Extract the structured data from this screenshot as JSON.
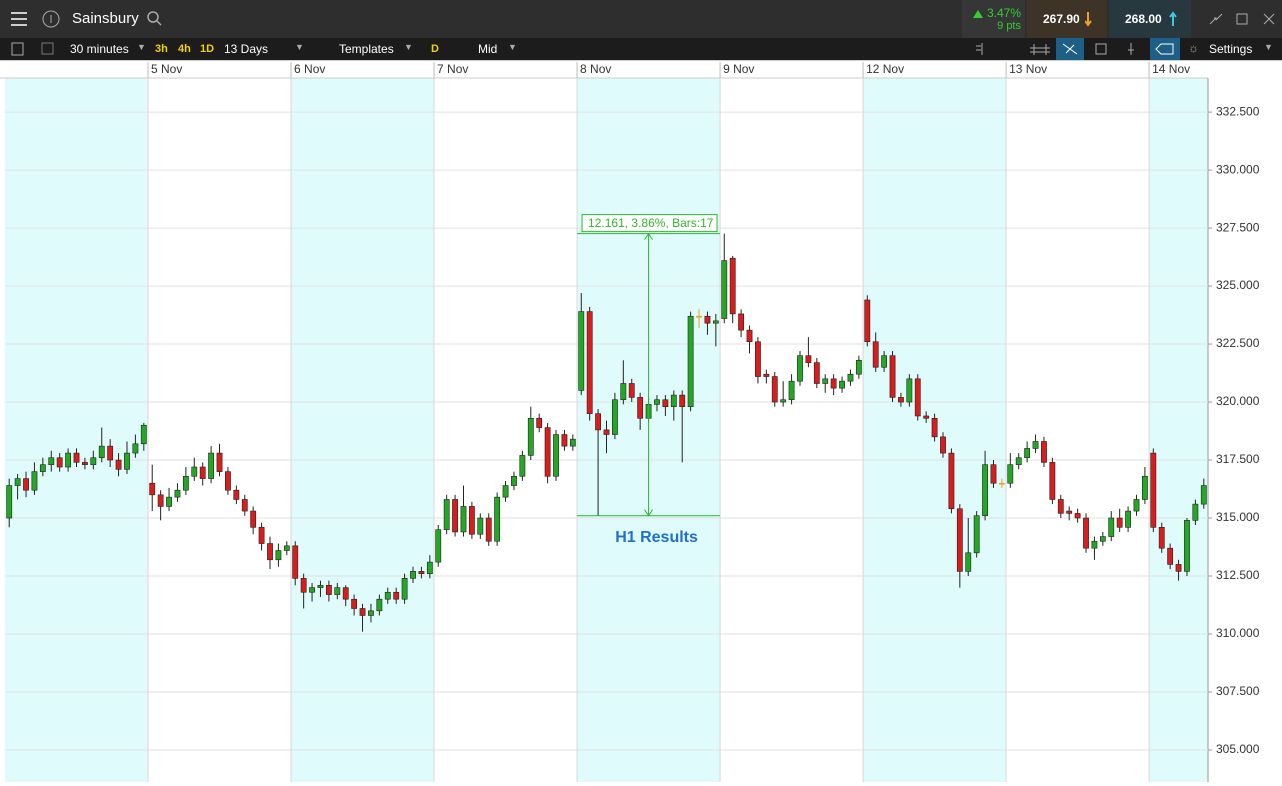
{
  "toolbar": {
    "instrument": "Sainsbury",
    "change_pct": "3.47%",
    "change_pts": "9 pts",
    "sell": "267.90",
    "buy": "268.00",
    "interval": "30 minutes",
    "quick_intervals": [
      "3h",
      "4h",
      "1D"
    ],
    "range": "13 Days",
    "templates": "Templates",
    "price_badge": "D",
    "price_type": "Mid",
    "settings": "Settings"
  },
  "chart_data": {
    "type": "candlestick",
    "ohlc": [
      [
        315.0,
        316.7,
        314.6,
        316.4
      ],
      [
        316.4,
        316.9,
        315.8,
        316.7
      ],
      [
        316.7,
        317.0,
        315.9,
        316.2
      ],
      [
        316.2,
        317.4,
        316.0,
        317.0
      ],
      [
        317.0,
        317.6,
        316.8,
        317.3
      ],
      [
        317.3,
        317.9,
        317.0,
        317.6
      ],
      [
        317.6,
        317.8,
        317.0,
        317.2
      ],
      [
        317.2,
        318.0,
        317.0,
        317.8
      ],
      [
        317.8,
        318.0,
        317.2,
        317.4
      ],
      [
        317.4,
        317.6,
        317.1,
        317.3
      ],
      [
        317.3,
        317.9,
        317.1,
        317.6
      ],
      [
        317.6,
        318.9,
        317.4,
        318.1
      ],
      [
        318.1,
        318.4,
        317.2,
        317.5
      ],
      [
        317.5,
        317.8,
        316.8,
        317.1
      ],
      [
        317.1,
        318.3,
        316.9,
        317.8
      ],
      [
        317.8,
        318.6,
        317.6,
        318.2
      ],
      [
        318.2,
        319.1,
        317.9,
        319.0
      ],
      [
        316.5,
        317.3,
        315.3,
        316.0
      ],
      [
        316.0,
        316.2,
        314.9,
        315.5
      ],
      [
        315.5,
        316.3,
        315.3,
        315.9
      ],
      [
        315.9,
        316.5,
        315.7,
        316.2
      ],
      [
        316.2,
        317.2,
        316.0,
        316.8
      ],
      [
        316.8,
        317.6,
        316.6,
        317.2
      ],
      [
        317.2,
        317.4,
        316.4,
        316.7
      ],
      [
        316.7,
        318.1,
        316.5,
        317.8
      ],
      [
        317.8,
        318.2,
        316.8,
        317.0
      ],
      [
        317.0,
        317.2,
        316.0,
        316.2
      ],
      [
        316.2,
        316.4,
        315.6,
        315.8
      ],
      [
        315.8,
        316.0,
        315.1,
        315.3
      ],
      [
        315.3,
        315.5,
        314.3,
        314.6
      ],
      [
        314.6,
        314.8,
        313.6,
        313.9
      ],
      [
        313.9,
        314.2,
        312.8,
        313.2
      ],
      [
        313.2,
        313.9,
        312.9,
        313.6
      ],
      [
        313.6,
        314.0,
        313.4,
        313.8
      ],
      [
        313.8,
        314.0,
        312.1,
        312.4
      ],
      [
        312.4,
        312.6,
        311.1,
        311.8
      ],
      [
        311.8,
        312.2,
        311.4,
        312.0
      ],
      [
        312.0,
        312.3,
        311.6,
        312.1
      ],
      [
        312.1,
        312.3,
        311.4,
        311.7
      ],
      [
        311.7,
        312.2,
        311.5,
        312.0
      ],
      [
        312.0,
        312.1,
        311.2,
        311.5
      ],
      [
        311.5,
        311.7,
        310.8,
        311.1
      ],
      [
        311.1,
        311.3,
        310.1,
        310.8
      ],
      [
        310.8,
        311.3,
        310.5,
        311.0
      ],
      [
        311.0,
        311.7,
        310.8,
        311.5
      ],
      [
        311.5,
        312.0,
        311.3,
        311.8
      ],
      [
        311.8,
        312.0,
        311.3,
        311.5
      ],
      [
        311.5,
        312.6,
        311.3,
        312.4
      ],
      [
        312.4,
        312.9,
        312.2,
        312.7
      ],
      [
        312.7,
        312.9,
        312.4,
        312.6
      ],
      [
        312.6,
        313.4,
        312.4,
        313.1
      ],
      [
        313.1,
        314.7,
        312.9,
        314.5
      ],
      [
        314.5,
        316.0,
        314.3,
        315.8
      ],
      [
        315.8,
        316.0,
        314.2,
        314.4
      ],
      [
        314.4,
        316.4,
        314.2,
        315.5
      ],
      [
        315.5,
        315.7,
        314.1,
        314.3
      ],
      [
        314.3,
        315.2,
        314.1,
        315.0
      ],
      [
        315.0,
        315.2,
        313.8,
        314.0
      ],
      [
        314.0,
        316.1,
        313.8,
        315.9
      ],
      [
        315.9,
        316.6,
        315.7,
        316.4
      ],
      [
        316.4,
        317.0,
        316.2,
        316.8
      ],
      [
        316.8,
        317.9,
        316.6,
        317.7
      ],
      [
        317.7,
        319.8,
        317.5,
        319.3
      ],
      [
        319.3,
        319.5,
        318.7,
        318.9
      ],
      [
        318.9,
        319.1,
        316.5,
        316.8
      ],
      [
        316.8,
        318.8,
        316.6,
        318.6
      ],
      [
        318.6,
        318.8,
        317.9,
        318.1
      ],
      [
        318.1,
        318.6,
        317.9,
        318.4
      ],
      [
        320.5,
        324.7,
        320.3,
        323.9
      ],
      [
        323.9,
        324.1,
        319.2,
        319.5
      ],
      [
        319.5,
        319.7,
        315.1,
        318.8
      ],
      [
        318.8,
        319.2,
        317.8,
        318.6
      ],
      [
        318.6,
        320.4,
        318.4,
        320.1
      ],
      [
        320.1,
        321.8,
        319.9,
        320.8
      ],
      [
        320.8,
        321.0,
        320.0,
        320.2
      ],
      [
        320.2,
        320.4,
        318.8,
        319.3
      ],
      [
        319.3,
        320.2,
        319.1,
        319.9
      ],
      [
        319.9,
        320.3,
        319.6,
        320.1
      ],
      [
        320.1,
        320.3,
        319.4,
        319.8
      ],
      [
        319.8,
        320.5,
        319.2,
        320.3
      ],
      [
        320.3,
        320.5,
        317.4,
        319.8
      ],
      [
        319.8,
        323.9,
        319.6,
        323.7
      ],
      [
        323.7,
        324.0,
        323.2,
        323.7
      ],
      [
        323.7,
        323.9,
        322.9,
        323.4
      ],
      [
        323.4,
        323.8,
        322.4,
        323.5
      ],
      [
        323.6,
        327.261,
        323.4,
        326.1
      ],
      [
        326.2,
        326.3,
        323.4,
        323.8
      ],
      [
        323.8,
        324.0,
        322.8,
        323.1
      ],
      [
        323.1,
        323.3,
        322.1,
        322.6
      ],
      [
        322.6,
        322.8,
        320.8,
        321.1
      ],
      [
        321.2,
        321.4,
        320.8,
        321.1
      ],
      [
        321.1,
        321.3,
        319.8,
        320.0
      ],
      [
        320.0,
        320.9,
        319.8,
        320.1
      ],
      [
        320.1,
        321.2,
        319.9,
        320.9
      ],
      [
        320.9,
        322.2,
        320.7,
        322.0
      ],
      [
        322.0,
        322.8,
        321.5,
        321.7
      ],
      [
        321.7,
        321.9,
        320.6,
        320.8
      ],
      [
        320.8,
        321.2,
        320.4,
        321.0
      ],
      [
        321.0,
        321.2,
        320.3,
        320.6
      ],
      [
        320.6,
        321.1,
        320.4,
        320.9
      ],
      [
        320.9,
        321.4,
        320.7,
        321.2
      ],
      [
        321.2,
        322.0,
        321.0,
        321.8
      ],
      [
        324.4,
        324.6,
        322.4,
        322.6
      ],
      [
        322.6,
        323.0,
        321.3,
        321.5
      ],
      [
        321.5,
        322.2,
        321.3,
        322.0
      ],
      [
        322.0,
        322.2,
        320.0,
        320.2
      ],
      [
        320.2,
        320.4,
        319.8,
        320.0
      ],
      [
        320.0,
        321.2,
        319.8,
        321.0
      ],
      [
        321.0,
        321.2,
        319.2,
        319.4
      ],
      [
        319.4,
        319.6,
        319.1,
        319.3
      ],
      [
        319.3,
        319.5,
        318.3,
        318.5
      ],
      [
        318.5,
        318.7,
        317.6,
        317.8
      ],
      [
        317.8,
        318.0,
        315.2,
        315.4
      ],
      [
        315.4,
        315.6,
        312.0,
        312.7
      ],
      [
        312.7,
        315.0,
        312.5,
        313.5
      ],
      [
        313.5,
        315.3,
        313.3,
        315.1
      ],
      [
        315.1,
        317.9,
        314.9,
        317.3
      ],
      [
        317.3,
        317.5,
        316.3,
        316.5
      ],
      [
        316.5,
        316.7,
        316.3,
        316.5
      ],
      [
        316.5,
        317.8,
        316.3,
        317.3
      ],
      [
        317.3,
        317.8,
        317.1,
        317.6
      ],
      [
        317.6,
        318.3,
        317.4,
        318.0
      ],
      [
        318.0,
        318.6,
        317.8,
        318.3
      ],
      [
        318.3,
        318.5,
        317.2,
        317.4
      ],
      [
        317.4,
        317.6,
        315.6,
        315.8
      ],
      [
        315.8,
        316.0,
        315.0,
        315.2
      ],
      [
        315.3,
        315.5,
        314.9,
        315.2
      ],
      [
        315.2,
        315.4,
        314.8,
        315.0
      ],
      [
        315.0,
        315.2,
        313.5,
        313.7
      ],
      [
        313.7,
        314.2,
        313.2,
        314.0
      ],
      [
        314.0,
        314.4,
        313.8,
        314.2
      ],
      [
        314.2,
        315.3,
        314.0,
        315.0
      ],
      [
        315.0,
        315.4,
        314.4,
        314.6
      ],
      [
        314.6,
        315.5,
        314.4,
        315.3
      ],
      [
        315.3,
        316.0,
        315.1,
        315.8
      ],
      [
        315.8,
        317.2,
        315.6,
        316.8
      ],
      [
        317.8,
        318.0,
        314.4,
        314.6
      ],
      [
        314.6,
        314.8,
        313.5,
        313.7
      ],
      [
        313.7,
        313.9,
        312.8,
        313.0
      ],
      [
        313.0,
        313.2,
        312.3,
        312.7
      ],
      [
        312.7,
        315.0,
        312.5,
        314.9
      ],
      [
        314.9,
        315.8,
        314.7,
        315.6
      ],
      [
        315.6,
        316.7,
        315.4,
        316.4
      ]
    ],
    "colors": {
      "up": "#23a823",
      "down": "#d91c1c",
      "flat": "#f0a020",
      "shade": "#e0fbfb"
    },
    "xlim": [
      0,
      143
    ],
    "xticks": [
      {
        "value": 17,
        "label": "5 Nov"
      },
      {
        "value": 34,
        "label": "6 Nov"
      },
      {
        "value": 51,
        "label": "7 Nov"
      },
      {
        "value": 68,
        "label": "8 Nov"
      },
      {
        "value": 85,
        "label": "9 Nov"
      },
      {
        "value": 102,
        "label": "12 Nov"
      },
      {
        "value": 119,
        "label": "13 Nov"
      },
      {
        "value": 136,
        "label": "14 Nov"
      }
    ],
    "ylim": [
      303.62,
      333.97
    ],
    "yticks": [
      {
        "value": 305,
        "label": "305.000"
      },
      {
        "value": 307.5,
        "label": "307.500"
      },
      {
        "value": 310,
        "label": "310.000"
      },
      {
        "value": 312.5,
        "label": "312.500"
      },
      {
        "value": 315,
        "label": "315.000"
      },
      {
        "value": 317.5,
        "label": "317.500"
      },
      {
        "value": 320,
        "label": "320.000"
      },
      {
        "value": 322.5,
        "label": "322.500"
      },
      {
        "value": 325,
        "label": "325.000"
      },
      {
        "value": 327.5,
        "label": "327.500"
      },
      {
        "value": 330,
        "label": "330.000"
      },
      {
        "value": 332.5,
        "label": "332.500"
      }
    ],
    "grid": true,
    "measure": {
      "label": "12.161, 3.86%, Bars:17",
      "low": 315.1,
      "high": 327.261,
      "x": [
        68,
        85
      ],
      "color": "#2db82d"
    },
    "annotation": {
      "text": "H1 Results",
      "color": "#1f6fd1"
    }
  }
}
